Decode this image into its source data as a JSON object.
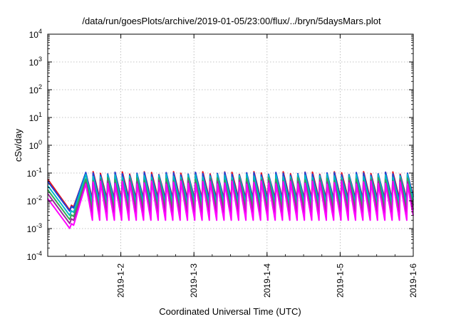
{
  "chart_data": {
    "type": "line",
    "title": "/data/run/goesPlots/archive/2019-01-05/23:00/flux/../bryn/5daysMars.plot",
    "xlabel": "Coordinated Universal Time (UTC)",
    "ylabel": "cSv/day",
    "y_scale": "log",
    "ylim": [
      0.0001,
      10000
    ],
    "y_ticks": [
      {
        "mantissa": "10",
        "exponent": "4"
      },
      {
        "mantissa": "10",
        "exponent": "3"
      },
      {
        "mantissa": "10",
        "exponent": "2"
      },
      {
        "mantissa": "10",
        "exponent": "1"
      },
      {
        "mantissa": "10",
        "exponent": "0"
      },
      {
        "mantissa": "10",
        "exponent": "-1"
      },
      {
        "mantissa": "10",
        "exponent": "-2"
      },
      {
        "mantissa": "10",
        "exponent": "-3"
      },
      {
        "mantissa": "10",
        "exponent": "-4"
      }
    ],
    "xlim": [
      "2019-01-01 00:00",
      "2019-01-06 00:00"
    ],
    "x_ticks": [
      "2019-1-2",
      "2019-1-3",
      "2019-1-4",
      "2019-1-5",
      "2019-1-6"
    ],
    "grid": true,
    "pattern": {
      "gap_start": "2019-01-01 08:30",
      "gap_end": "2019-01-01 12:30",
      "cycle_hours": 2.4,
      "cycles": 45
    },
    "series": [
      {
        "color": "#e8121b",
        "start": 0.06,
        "pre_gap_end": 0.0055,
        "peak": 0.1,
        "trough": 0.012
      },
      {
        "color": "#2040d8",
        "start": 0.05,
        "pre_gap_end": 0.005,
        "peak": 0.095,
        "trough": 0.01
      },
      {
        "color": "#00b8c8",
        "start": 0.035,
        "pre_gap_end": 0.0035,
        "peak": 0.08,
        "trough": 0.008
      },
      {
        "color": "#33aa55",
        "start": 0.025,
        "pre_gap_end": 0.0025,
        "peak": 0.06,
        "trough": 0.005
      },
      {
        "color": "#9a2a9a",
        "start": 0.018,
        "pre_gap_end": 0.0018,
        "peak": 0.05,
        "trough": 0.0035
      },
      {
        "color": "#ff00ff",
        "start": 0.012,
        "pre_gap_end": 0.0012,
        "peak": 0.045,
        "trough": 0.002
      }
    ]
  }
}
